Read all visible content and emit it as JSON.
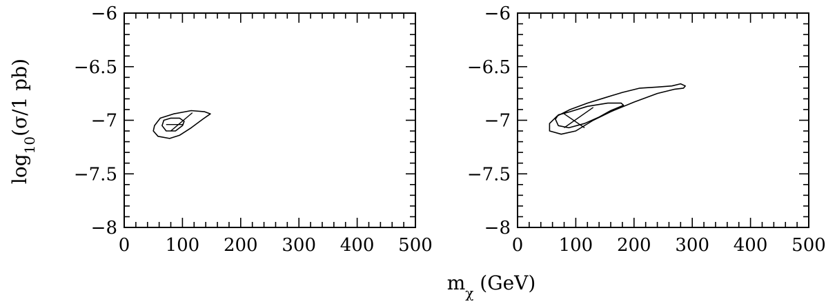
{
  "chart_data": [
    {
      "type": "contour",
      "panel": "left",
      "xlabel": "m_χ (GeV)",
      "ylabel": "log10(σ/1 pb)",
      "xlim": [
        0,
        500
      ],
      "ylim": [
        -8,
        -6
      ],
      "x_ticks": [
        "0",
        "100",
        "200",
        "300",
        "400",
        "500"
      ],
      "y_ticks": [
        "−6",
        "−6.5",
        "−7",
        "−7.5",
        "−8"
      ],
      "contours": [
        {
          "level": "outer",
          "points": [
            [
              50,
              -7.1
            ],
            [
              58,
              -7.15
            ],
            [
              78,
              -7.17
            ],
            [
              95,
              -7.14
            ],
            [
              115,
              -7.07
            ],
            [
              135,
              -6.99
            ],
            [
              148,
              -6.94
            ],
            [
              138,
              -6.92
            ],
            [
              115,
              -6.91
            ],
            [
              85,
              -6.94
            ],
            [
              62,
              -6.98
            ],
            [
              52,
              -7.05
            ],
            [
              50,
              -7.1
            ]
          ]
        },
        {
          "level": "inner",
          "points": [
            [
              65,
              -7.05
            ],
            [
              72,
              -7.1
            ],
            [
              88,
              -7.1
            ],
            [
              100,
              -7.05
            ],
            [
              103,
              -7.01
            ],
            [
              95,
              -6.98
            ],
            [
              80,
              -6.98
            ],
            [
              68,
              -7.0
            ],
            [
              65,
              -7.05
            ]
          ]
        }
      ],
      "best_fit_lines": [
        [
          [
            80,
            -7.1
          ],
          [
            117,
            -6.93
          ]
        ],
        [
          [
            72,
            -7.04
          ],
          [
            102,
            -7.04
          ]
        ]
      ]
    },
    {
      "type": "contour",
      "panel": "right",
      "xlabel": "",
      "ylabel": "",
      "xlim": [
        0,
        500
      ],
      "ylim": [
        -8,
        -6
      ],
      "x_ticks": [
        "0",
        "100",
        "200",
        "300",
        "400",
        "500"
      ],
      "y_ticks": [
        "−6",
        "−6.5",
        "−7",
        "−7.5",
        "−8"
      ],
      "contours": [
        {
          "level": "outer",
          "points": [
            [
              55,
              -7.1
            ],
            [
              75,
              -7.13
            ],
            [
              100,
              -7.1
            ],
            [
              130,
              -7.0
            ],
            [
              160,
              -6.92
            ],
            [
              200,
              -6.83
            ],
            [
              240,
              -6.75
            ],
            [
              270,
              -6.71
            ],
            [
              285,
              -6.7
            ],
            [
              288,
              -6.68
            ],
            [
              280,
              -6.66
            ],
            [
              265,
              -6.68
            ],
            [
              240,
              -6.69
            ],
            [
              210,
              -6.7
            ],
            [
              180,
              -6.74
            ],
            [
              150,
              -6.79
            ],
            [
              120,
              -6.84
            ],
            [
              90,
              -6.9
            ],
            [
              68,
              -6.96
            ],
            [
              55,
              -7.03
            ],
            [
              55,
              -7.1
            ]
          ]
        },
        {
          "level": "inner",
          "points": [
            [
              65,
              -6.99
            ],
            [
              70,
              -7.05
            ],
            [
              88,
              -7.07
            ],
            [
              115,
              -7.03
            ],
            [
              140,
              -6.97
            ],
            [
              160,
              -6.91
            ],
            [
              182,
              -6.86
            ],
            [
              178,
              -6.84
            ],
            [
              155,
              -6.84
            ],
            [
              120,
              -6.87
            ],
            [
              90,
              -6.92
            ],
            [
              70,
              -6.95
            ],
            [
              65,
              -6.99
            ]
          ]
        }
      ],
      "best_fit_lines": [
        [
          [
            80,
            -6.94
          ],
          [
            115,
            -7.07
          ]
        ],
        [
          [
            80,
            -7.07
          ],
          [
            130,
            -6.88
          ]
        ]
      ]
    }
  ]
}
